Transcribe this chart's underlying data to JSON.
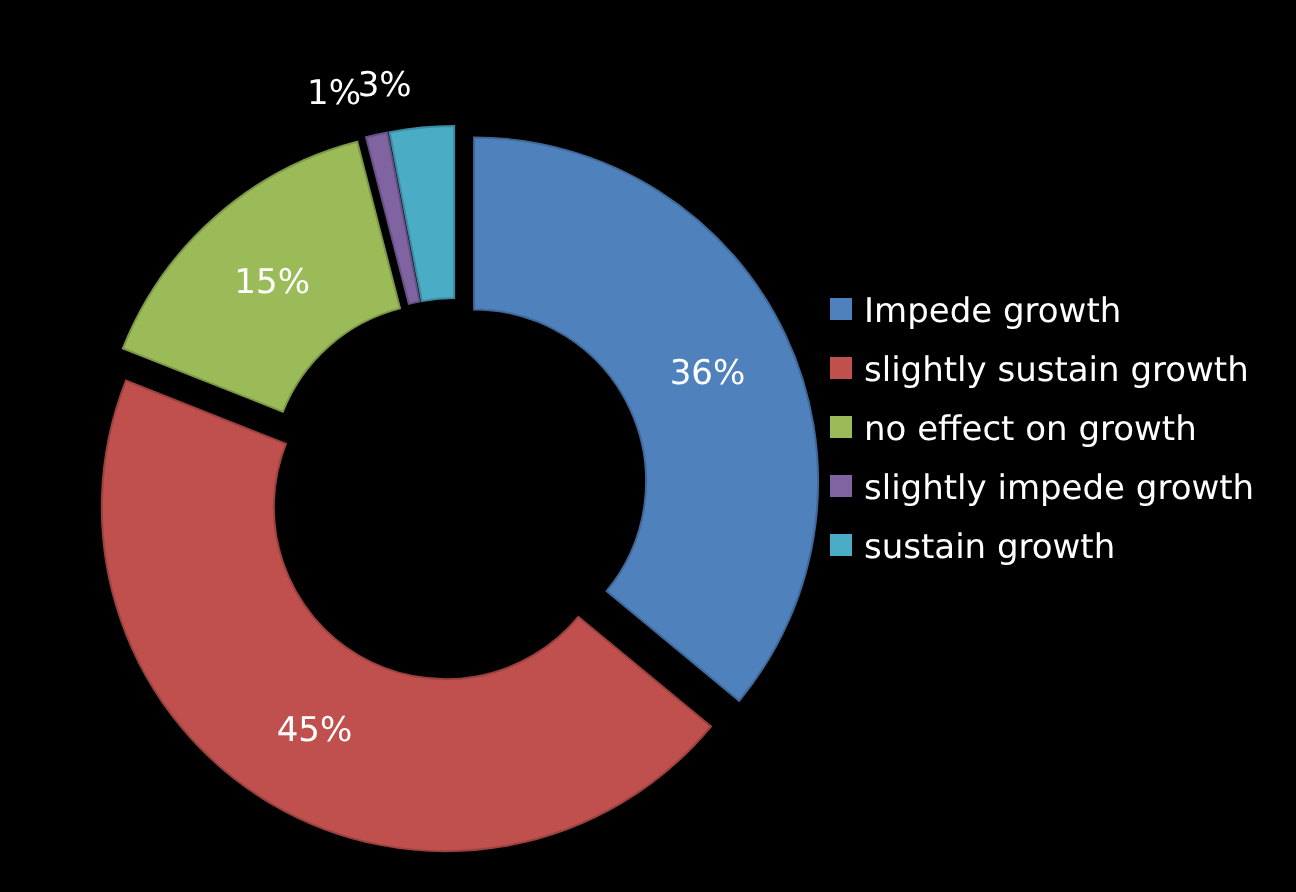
{
  "chart_data": {
    "type": "donut",
    "categories": [
      "Impede growth",
      "slightly sustain growth",
      "no effect on growth",
      "slightly impede growth",
      "sustain growth"
    ],
    "values": [
      36,
      45,
      15,
      1,
      3
    ],
    "colors": [
      "#4f81bd",
      "#c0504d",
      "#9bbb59",
      "#8064a2",
      "#4bacc6"
    ],
    "value_labels": [
      "36%",
      "45%",
      "15%",
      "1%",
      "3%"
    ],
    "legend": "right"
  }
}
